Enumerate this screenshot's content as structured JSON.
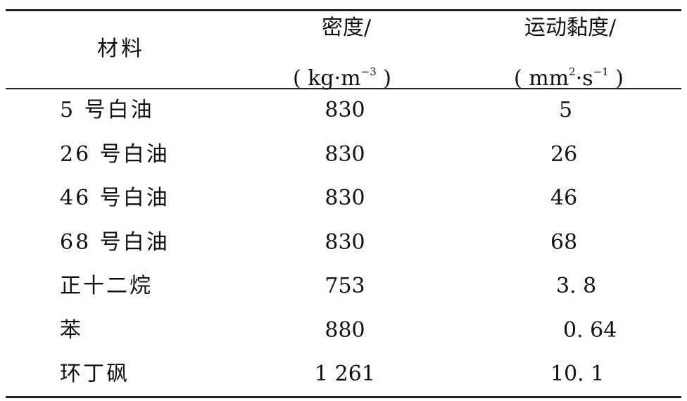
{
  "table": {
    "headers": {
      "material": "材料",
      "density": {
        "label": "密度/",
        "unit_open": "(",
        "unit_a": "kg·m",
        "unit_a_sup": "−3",
        "unit_close": ")"
      },
      "viscosity": {
        "label": "运动黏度/",
        "unit_open": "(",
        "unit_a": "mm",
        "unit_a_sup": "2",
        "unit_b": "·s",
        "unit_b_sup": "−1",
        "unit_close": ")"
      }
    },
    "rows": [
      {
        "material": "5 号白油",
        "density": "830",
        "viscosity": "5"
      },
      {
        "material": "26 号白油",
        "density": "830",
        "viscosity": "26"
      },
      {
        "material": "46 号白油",
        "density": "830",
        "viscosity": "46"
      },
      {
        "material": "68 号白油",
        "density": "830",
        "viscosity": "68"
      },
      {
        "material": "正十二烷",
        "density": "753",
        "viscosity": "3. 8"
      },
      {
        "material": "苯",
        "density": "880",
        "viscosity": "0. 64"
      },
      {
        "material": "环丁砜",
        "density": "1 261",
        "viscosity": "10. 1"
      }
    ]
  }
}
